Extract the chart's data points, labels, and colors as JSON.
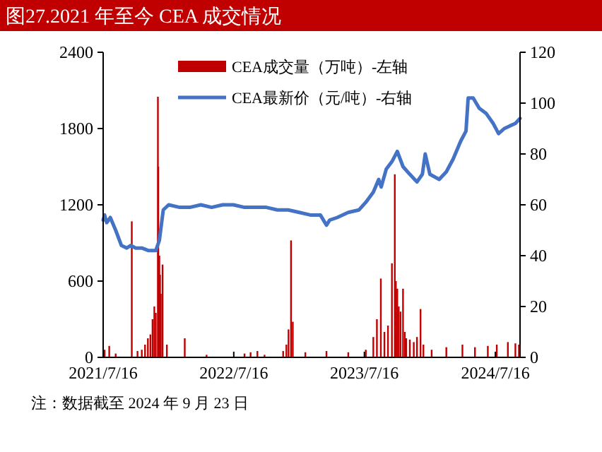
{
  "chart_data": {
    "type": "bar",
    "title": "图27.2021 年至今 CEA 成交情况",
    "annotations": [
      "注：数据截至 2024 年 9 月 23 日"
    ],
    "xlim": [
      "2021-07-16",
      "2024-09-23"
    ],
    "xticks": [
      {
        "value": "2021-07-16",
        "label": "2021/7/16"
      },
      {
        "value": "2022-07-16",
        "label": "2022/7/16"
      },
      {
        "value": "2023-07-16",
        "label": "2023/7/16"
      },
      {
        "value": "2024-07-16",
        "label": "2024/7/16"
      }
    ],
    "ylim": [
      0,
      2400
    ],
    "yticks": [
      0,
      600,
      1200,
      1800,
      2400
    ],
    "y2lim": [
      0,
      120
    ],
    "y2ticks": [
      0,
      20,
      40,
      60,
      80,
      100,
      120
    ],
    "grid": false,
    "legend": "top",
    "series": [
      {
        "name": "CEA成交量（万吨）-左轴",
        "color": "#c00000",
        "x": [
          "2021-07-20",
          "2021-08-02",
          "2021-08-20",
          "2021-10-04",
          "2021-10-20",
          "2021-11-01",
          "2021-11-10",
          "2021-11-18",
          "2021-11-25",
          "2021-12-01",
          "2021-12-06",
          "2021-12-10",
          "2021-12-16",
          "2021-12-17",
          "2021-12-20",
          "2021-12-22",
          "2021-12-24",
          "2021-12-29",
          "2022-01-10",
          "2022-03-01",
          "2022-05-01",
          "2022-08-15",
          "2022-09-01",
          "2022-09-20",
          "2022-10-10",
          "2022-12-01",
          "2022-12-10",
          "2022-12-16",
          "2022-12-23",
          "2022-12-28",
          "2023-02-01",
          "2023-04-01",
          "2023-06-01",
          "2023-07-20",
          "2023-08-10",
          "2023-08-20",
          "2023-08-31",
          "2023-09-10",
          "2023-09-20",
          "2023-10-01",
          "2023-10-09",
          "2023-10-12",
          "2023-10-16",
          "2023-10-20",
          "2023-10-25",
          "2023-11-01",
          "2023-11-06",
          "2023-11-10",
          "2023-11-20",
          "2023-12-01",
          "2023-12-10",
          "2023-12-20",
          "2023-12-28",
          "2024-01-20",
          "2024-03-01",
          "2024-04-15",
          "2024-05-20",
          "2024-06-25",
          "2024-07-20",
          "2024-08-20",
          "2024-09-10",
          "2024-09-20"
        ],
        "values": [
          60,
          90,
          30,
          1070,
          50,
          60,
          100,
          150,
          180,
          300,
          400,
          350,
          2050,
          1500,
          800,
          650,
          500,
          730,
          100,
          150,
          20,
          30,
          40,
          50,
          20,
          50,
          100,
          220,
          920,
          280,
          40,
          50,
          40,
          60,
          160,
          300,
          620,
          200,
          250,
          740,
          1440,
          600,
          540,
          400,
          360,
          540,
          200,
          150,
          140,
          120,
          160,
          380,
          100,
          60,
          80,
          100,
          80,
          90,
          100,
          120,
          110,
          100
        ]
      },
      {
        "name": "CEA最新价（元/吨）-右轴",
        "type": "line",
        "axis": "y2",
        "color": "#4472c4",
        "x": [
          "2021-07-16",
          "2021-07-20",
          "2021-07-26",
          "2021-08-05",
          "2021-08-20",
          "2021-09-05",
          "2021-09-20",
          "2021-10-01",
          "2021-10-15",
          "2021-11-01",
          "2021-11-20",
          "2021-12-10",
          "2021-12-20",
          "2021-12-31",
          "2022-01-15",
          "2022-02-15",
          "2022-03-15",
          "2022-04-15",
          "2022-05-15",
          "2022-06-15",
          "2022-07-15",
          "2022-08-15",
          "2022-09-15",
          "2022-10-15",
          "2022-11-15",
          "2022-12-15",
          "2023-01-15",
          "2023-02-15",
          "2023-03-15",
          "2023-04-01",
          "2023-04-10",
          "2023-05-01",
          "2023-06-01",
          "2023-07-01",
          "2023-07-20",
          "2023-08-10",
          "2023-08-25",
          "2023-09-01",
          "2023-09-15",
          "2023-10-01",
          "2023-10-16",
          "2023-11-01",
          "2023-11-20",
          "2023-12-10",
          "2023-12-25",
          "2024-01-02",
          "2024-01-15",
          "2024-02-10",
          "2024-03-01",
          "2024-03-20",
          "2024-04-10",
          "2024-04-25",
          "2024-05-01",
          "2024-05-15",
          "2024-06-01",
          "2024-06-20",
          "2024-07-10",
          "2024-07-25",
          "2024-08-10",
          "2024-08-25",
          "2024-09-10",
          "2024-09-23"
        ],
        "values": [
          54,
          56,
          53,
          55,
          50,
          44,
          43,
          44,
          43,
          43,
          42,
          42,
          46,
          58,
          60,
          59,
          59,
          60,
          59,
          60,
          60,
          59,
          59,
          59,
          58,
          58,
          57,
          56,
          56,
          52,
          54,
          55,
          57,
          58,
          61,
          65,
          70,
          67,
          74,
          77,
          81,
          75,
          72,
          69,
          72,
          80,
          72,
          70,
          73,
          78,
          85,
          89,
          102,
          102,
          98,
          96,
          92,
          88,
          90,
          91,
          92,
          94
        ]
      }
    ]
  }
}
